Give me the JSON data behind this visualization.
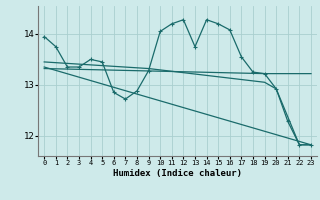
{
  "xlabel": "Humidex (Indice chaleur)",
  "bg_color": "#ceeaea",
  "grid_color": "#aacfcf",
  "line_color": "#1a6b6b",
  "xlim": [
    -0.5,
    23.5
  ],
  "ylim": [
    11.6,
    14.55
  ],
  "yticks": [
    12,
    13,
    14
  ],
  "xticks": [
    0,
    1,
    2,
    3,
    4,
    5,
    6,
    7,
    8,
    9,
    10,
    11,
    12,
    13,
    14,
    15,
    16,
    17,
    18,
    19,
    20,
    21,
    22,
    23
  ],
  "series": [
    [
      0,
      13.95
    ],
    [
      1,
      13.75
    ],
    [
      2,
      13.35
    ],
    [
      3,
      13.35
    ],
    [
      4,
      13.5
    ],
    [
      5,
      13.45
    ],
    [
      6,
      12.85
    ],
    [
      7,
      12.72
    ],
    [
      8,
      12.88
    ],
    [
      9,
      13.28
    ],
    [
      10,
      14.05
    ],
    [
      11,
      14.2
    ],
    [
      12,
      14.28
    ],
    [
      13,
      13.75
    ],
    [
      14,
      14.28
    ],
    [
      15,
      14.2
    ],
    [
      16,
      14.08
    ],
    [
      17,
      13.55
    ],
    [
      18,
      13.25
    ],
    [
      19,
      13.22
    ],
    [
      20,
      12.92
    ],
    [
      21,
      12.28
    ],
    [
      22,
      11.82
    ],
    [
      23,
      11.82
    ]
  ],
  "line_flat": [
    [
      0,
      13.32
    ],
    [
      19,
      13.22
    ],
    [
      23,
      13.22
    ]
  ],
  "line_decline1": [
    [
      0,
      13.35
    ],
    [
      23,
      11.82
    ]
  ],
  "line_decline2": [
    [
      0,
      13.45
    ],
    [
      9,
      13.32
    ],
    [
      19,
      13.05
    ],
    [
      20,
      12.92
    ],
    [
      22,
      11.82
    ],
    [
      23,
      11.82
    ]
  ]
}
